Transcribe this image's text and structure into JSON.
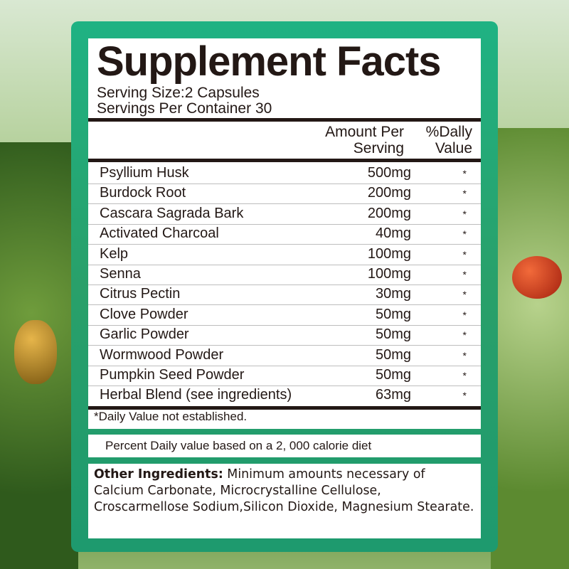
{
  "title": "Supplement Facts",
  "serving_size": "Serving Size:2 Capsules",
  "servings_per_container": "Servings Per Container 30",
  "columns": {
    "amount_line1": "Amount Per",
    "amount_line2": "Serving",
    "dv_line1": "%Dally",
    "dv_line2": "Value"
  },
  "rows": [
    {
      "name": "Psyllium  Husk",
      "amount": "500mg",
      "dv": "*"
    },
    {
      "name": "Burdock Root",
      "amount": "200mg",
      "dv": "*"
    },
    {
      "name": "Cascara Sagrada Bark",
      "amount": "200mg",
      "dv": "*"
    },
    {
      "name": "Activated Charcoal",
      "amount": "40mg",
      "dv": "*"
    },
    {
      "name": "Kelp",
      "amount": "100mg",
      "dv": "*"
    },
    {
      "name": "Senna",
      "amount": "100mg",
      "dv": "*"
    },
    {
      "name": "Citrus Pectin",
      "amount": "30mg",
      "dv": "*"
    },
    {
      "name": "Clove Powder",
      "amount": "50mg",
      "dv": "*"
    },
    {
      "name": "Garlic Powder",
      "amount": "50mg",
      "dv": "*"
    },
    {
      "name": "Wormwood Powder",
      "amount": "50mg",
      "dv": "*"
    },
    {
      "name": "Pumpkin Seed Powder",
      "amount": "50mg",
      "dv": "*"
    },
    {
      "name": "Herbal Blend (see ingredients)",
      "amount": "63mg",
      "dv": "*"
    }
  ],
  "footnote": "*Daily Value not established.",
  "percent_note": "Percent Daily value based on a 2, 000 calorie diet",
  "other_ingredients": {
    "label": "Other Ingredients:",
    "text": " Minimum amounts necessary of Calcium Carbonate, Microcrystalline Cellulose, Croscarmellose Sodium,Silicon Dioxide, Magnesium Stearate."
  },
  "colors": {
    "panel": "#1fb283",
    "text": "#231815"
  }
}
